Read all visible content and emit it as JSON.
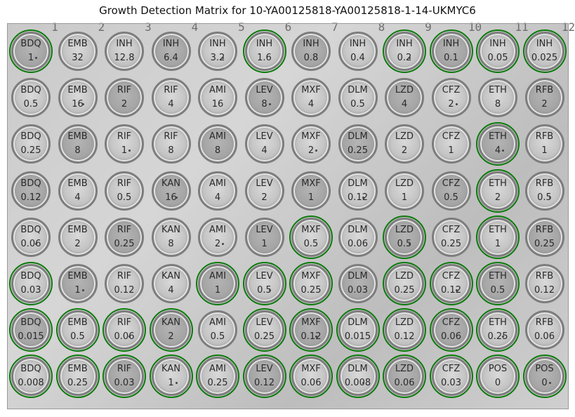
{
  "title": "Growth Detection Matrix for 10-YA00125818-YA00125818-1-14-UKMYC6",
  "plate_columns": [
    "1",
    "2",
    "3",
    "4",
    "5",
    "6",
    "7",
    "8",
    "9",
    "10",
    "11",
    "12"
  ],
  "colors": {
    "growth_ring": "#0a7a0a"
  },
  "rows": [
    [
      {
        "drug": "BDQ",
        "conc": "1",
        "growth": true
      },
      {
        "drug": "EMB",
        "conc": "32",
        "growth": false
      },
      {
        "drug": "INH",
        "conc": "12.8",
        "growth": false
      },
      {
        "drug": "INH",
        "conc": "6.4",
        "growth": false
      },
      {
        "drug": "INH",
        "conc": "3.2",
        "growth": false
      },
      {
        "drug": "INH",
        "conc": "1.6",
        "growth": true
      },
      {
        "drug": "INH",
        "conc": "0.8",
        "growth": false
      },
      {
        "drug": "INH",
        "conc": "0.4",
        "growth": false
      },
      {
        "drug": "INH",
        "conc": "0.2",
        "growth": true
      },
      {
        "drug": "INH",
        "conc": "0.1",
        "growth": true
      },
      {
        "drug": "INH",
        "conc": "0.05",
        "growth": true
      },
      {
        "drug": "INH",
        "conc": "0.025",
        "growth": true
      }
    ],
    [
      {
        "drug": "BDQ",
        "conc": "0.5",
        "growth": false
      },
      {
        "drug": "EMB",
        "conc": "16",
        "growth": false
      },
      {
        "drug": "RIF",
        "conc": "2",
        "growth": false
      },
      {
        "drug": "RIF",
        "conc": "4",
        "growth": false
      },
      {
        "drug": "AMI",
        "conc": "16",
        "growth": false
      },
      {
        "drug": "LEV",
        "conc": "8",
        "growth": false
      },
      {
        "drug": "MXF",
        "conc": "4",
        "growth": false
      },
      {
        "drug": "DLM",
        "conc": "0.5",
        "growth": false
      },
      {
        "drug": "LZD",
        "conc": "4",
        "growth": false
      },
      {
        "drug": "CFZ",
        "conc": "2",
        "growth": false
      },
      {
        "drug": "ETH",
        "conc": "8",
        "growth": false
      },
      {
        "drug": "RFB",
        "conc": "2",
        "growth": false
      }
    ],
    [
      {
        "drug": "BDQ",
        "conc": "0.25",
        "growth": false
      },
      {
        "drug": "EMB",
        "conc": "8",
        "growth": false
      },
      {
        "drug": "RIF",
        "conc": "1",
        "growth": false
      },
      {
        "drug": "RIF",
        "conc": "8",
        "growth": false
      },
      {
        "drug": "AMI",
        "conc": "8",
        "growth": false
      },
      {
        "drug": "LEV",
        "conc": "4",
        "growth": false
      },
      {
        "drug": "MXF",
        "conc": "2",
        "growth": false
      },
      {
        "drug": "DLM",
        "conc": "0.25",
        "growth": false
      },
      {
        "drug": "LZD",
        "conc": "2",
        "growth": false
      },
      {
        "drug": "CFZ",
        "conc": "1",
        "growth": false
      },
      {
        "drug": "ETH",
        "conc": "4",
        "growth": true
      },
      {
        "drug": "RFB",
        "conc": "1",
        "growth": false
      }
    ],
    [
      {
        "drug": "BDQ",
        "conc": "0.12",
        "growth": false
      },
      {
        "drug": "EMB",
        "conc": "4",
        "growth": false
      },
      {
        "drug": "RIF",
        "conc": "0.5",
        "growth": false
      },
      {
        "drug": "KAN",
        "conc": "16",
        "growth": false
      },
      {
        "drug": "AMI",
        "conc": "4",
        "growth": false
      },
      {
        "drug": "LEV",
        "conc": "2",
        "growth": false
      },
      {
        "drug": "MXF",
        "conc": "1",
        "growth": false
      },
      {
        "drug": "DLM",
        "conc": "0.12",
        "growth": false
      },
      {
        "drug": "LZD",
        "conc": "1",
        "growth": false
      },
      {
        "drug": "CFZ",
        "conc": "0.5",
        "growth": false
      },
      {
        "drug": "ETH",
        "conc": "2",
        "growth": true
      },
      {
        "drug": "RFB",
        "conc": "0.5",
        "growth": false
      }
    ],
    [
      {
        "drug": "BDQ",
        "conc": "0.06",
        "growth": false
      },
      {
        "drug": "EMB",
        "conc": "2",
        "growth": false
      },
      {
        "drug": "RIF",
        "conc": "0.25",
        "growth": false
      },
      {
        "drug": "KAN",
        "conc": "8",
        "growth": false
      },
      {
        "drug": "AMI",
        "conc": "2",
        "growth": false
      },
      {
        "drug": "LEV",
        "conc": "1",
        "growth": false
      },
      {
        "drug": "MXF",
        "conc": "0.5",
        "growth": true
      },
      {
        "drug": "DLM",
        "conc": "0.06",
        "growth": false
      },
      {
        "drug": "LZD",
        "conc": "0.5",
        "growth": true
      },
      {
        "drug": "CFZ",
        "conc": "0.25",
        "growth": false
      },
      {
        "drug": "ETH",
        "conc": "1",
        "growth": true
      },
      {
        "drug": "RFB",
        "conc": "0.25",
        "growth": false
      }
    ],
    [
      {
        "drug": "BDQ",
        "conc": "0.03",
        "growth": true
      },
      {
        "drug": "EMB",
        "conc": "1",
        "growth": false
      },
      {
        "drug": "RIF",
        "conc": "0.12",
        "growth": false
      },
      {
        "drug": "KAN",
        "conc": "4",
        "growth": false
      },
      {
        "drug": "AMI",
        "conc": "1",
        "growth": true
      },
      {
        "drug": "LEV",
        "conc": "0.5",
        "growth": true
      },
      {
        "drug": "MXF",
        "conc": "0.25",
        "growth": true
      },
      {
        "drug": "DLM",
        "conc": "0.03",
        "growth": false
      },
      {
        "drug": "LZD",
        "conc": "0.25",
        "growth": true
      },
      {
        "drug": "CFZ",
        "conc": "0.12",
        "growth": true
      },
      {
        "drug": "ETH",
        "conc": "0.5",
        "growth": true
      },
      {
        "drug": "RFB",
        "conc": "0.12",
        "growth": false
      }
    ],
    [
      {
        "drug": "BDQ",
        "conc": "0.015",
        "growth": true
      },
      {
        "drug": "EMB",
        "conc": "0.5",
        "growth": true
      },
      {
        "drug": "RIF",
        "conc": "0.06",
        "growth": true
      },
      {
        "drug": "KAN",
        "conc": "2",
        "growth": true
      },
      {
        "drug": "AMI",
        "conc": "0.5",
        "growth": false
      },
      {
        "drug": "LEV",
        "conc": "0.25",
        "growth": true
      },
      {
        "drug": "MXF",
        "conc": "0.12",
        "growth": true
      },
      {
        "drug": "DLM",
        "conc": "0.015",
        "growth": true
      },
      {
        "drug": "LZD",
        "conc": "0.12",
        "growth": true
      },
      {
        "drug": "CFZ",
        "conc": "0.06",
        "growth": true
      },
      {
        "drug": "ETH",
        "conc": "0.25",
        "growth": true
      },
      {
        "drug": "RFB",
        "conc": "0.06",
        "growth": false
      }
    ],
    [
      {
        "drug": "BDQ",
        "conc": "0.008",
        "growth": true
      },
      {
        "drug": "EMB",
        "conc": "0.25",
        "growth": true
      },
      {
        "drug": "RIF",
        "conc": "0.03",
        "growth": true
      },
      {
        "drug": "KAN",
        "conc": "1",
        "growth": true
      },
      {
        "drug": "AMI",
        "conc": "0.25",
        "growth": true
      },
      {
        "drug": "LEV",
        "conc": "0.12",
        "growth": true
      },
      {
        "drug": "MXF",
        "conc": "0.06",
        "growth": true
      },
      {
        "drug": "DLM",
        "conc": "0.008",
        "growth": true
      },
      {
        "drug": "LZD",
        "conc": "0.06",
        "growth": true
      },
      {
        "drug": "CFZ",
        "conc": "0.03",
        "growth": true
      },
      {
        "drug": "POS",
        "conc": "0",
        "growth": true
      },
      {
        "drug": "POS",
        "conc": "0",
        "growth": true
      }
    ]
  ]
}
